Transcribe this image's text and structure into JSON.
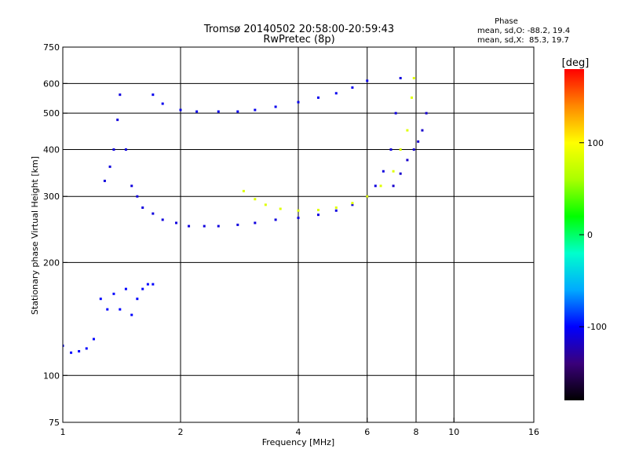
{
  "chart_data": {
    "type": "scatter",
    "title": "Tromsø 20140502 20:58:00-20:59:43",
    "subtitle": "RwPretec (8p)",
    "xlabel": "Frequency [MHz]",
    "ylabel": "Stationary phase Virtual Height [km]",
    "x_scale": "log",
    "y_scale": "log",
    "xlim": [
      1,
      16
    ],
    "ylim": [
      75,
      750
    ],
    "x_ticks": [
      1,
      2,
      4,
      6,
      8,
      10,
      16
    ],
    "y_ticks": [
      75,
      100,
      200,
      300,
      400,
      500,
      600,
      750
    ],
    "x_gridlines": [
      2,
      4,
      6,
      8,
      10
    ],
    "y_gridlines": [
      100,
      200,
      300,
      400,
      500,
      600
    ],
    "grid": true,
    "phase_stats": {
      "title": "Phase",
      "line_o": "mean, sd,O: -88.2, 19.4",
      "line_x": "mean, sd,X:  85.3, 19.7"
    },
    "colorbar": {
      "label": "[deg]",
      "range": [
        -180,
        180
      ],
      "ticks": [
        -100,
        0,
        100
      ],
      "colors": [
        "#000000",
        "#3a007a",
        "#0000ff",
        "#00aaff",
        "#00ffcc",
        "#00ff00",
        "#aaff00",
        "#ffff00",
        "#ff8800",
        "#ff0000"
      ]
    },
    "series": [
      {
        "x": [
          1.0,
          1.05,
          1.1,
          1.15,
          1.2,
          1.25,
          1.3,
          1.35,
          1.4,
          1.45,
          1.5,
          1.55,
          1.6,
          1.65,
          1.7
        ],
        "y": [
          120,
          115,
          116,
          118,
          125,
          160,
          150,
          165,
          150,
          170,
          145,
          160,
          170,
          175,
          175
        ],
        "phase": -100
      },
      {
        "x": [
          1.28,
          1.32,
          1.35,
          1.38,
          1.4,
          1.45,
          1.5,
          1.55,
          1.6,
          1.7,
          1.8,
          1.95,
          2.1,
          2.3,
          2.5,
          2.8,
          3.1,
          3.5,
          4.0,
          4.5,
          5.0,
          5.5,
          6.0,
          6.3,
          6.6,
          6.9,
          7.1,
          7.3
        ],
        "y": [
          330,
          360,
          400,
          480,
          560,
          400,
          320,
          300,
          280,
          270,
          260,
          255,
          250,
          250,
          250,
          252,
          255,
          260,
          263,
          268,
          275,
          285,
          300,
          320,
          350,
          400,
          500,
          620
        ],
        "phase": -110
      },
      {
        "x": [
          1.7,
          1.8,
          2.0,
          2.2,
          2.5,
          2.8,
          3.1,
          3.5,
          4.0,
          4.5,
          5.0,
          5.5,
          6.0
        ],
        "y": [
          560,
          530,
          510,
          505,
          505,
          505,
          510,
          520,
          535,
          550,
          565,
          585,
          610
        ],
        "phase": -105
      },
      {
        "x": [
          2.9,
          3.1,
          3.3,
          3.6,
          4.0,
          4.5,
          5.0,
          5.5,
          6.0,
          6.5,
          7.0,
          7.3,
          7.6,
          7.8,
          7.9
        ],
        "y": [
          310,
          295,
          285,
          278,
          275,
          276,
          280,
          288,
          300,
          320,
          350,
          400,
          450,
          550,
          620
        ],
        "phase": 85
      },
      {
        "x": [
          7.0,
          7.3,
          7.6,
          7.9,
          8.1,
          8.3,
          8.5
        ],
        "y": [
          320,
          345,
          375,
          400,
          420,
          450,
          500
        ],
        "phase": -115
      }
    ]
  }
}
